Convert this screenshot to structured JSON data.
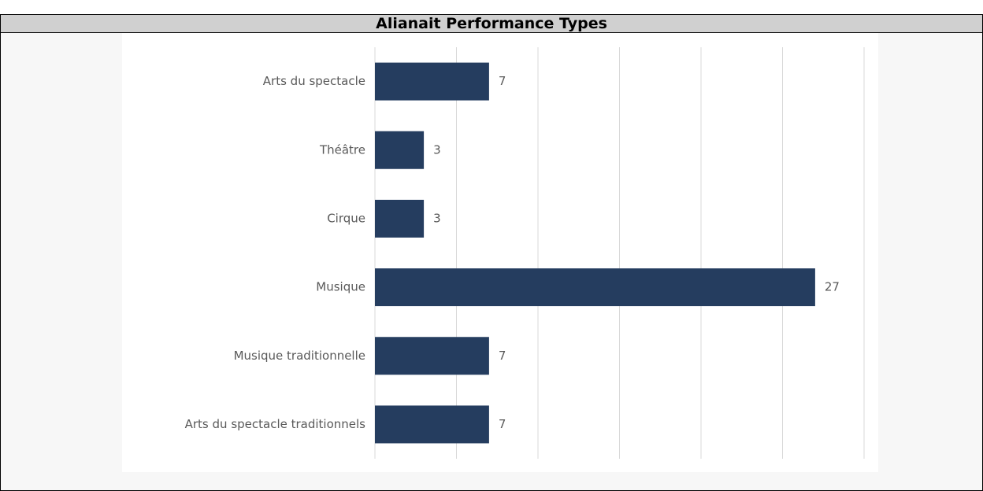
{
  "chart_data": {
    "type": "hbar",
    "title": "Alianait Performance Types",
    "categories": [
      "Arts du spectacle",
      "Théâtre",
      "Cirque",
      "Musique",
      "Musique traditionnelle",
      "Arts du spectacle traditionnels"
    ],
    "values": [
      7,
      3,
      3,
      27,
      7,
      7
    ],
    "color": "#253d5f",
    "xlim": [
      0,
      30
    ],
    "xticks": [
      0,
      5,
      10,
      15,
      20,
      25,
      30
    ],
    "grid": true
  }
}
